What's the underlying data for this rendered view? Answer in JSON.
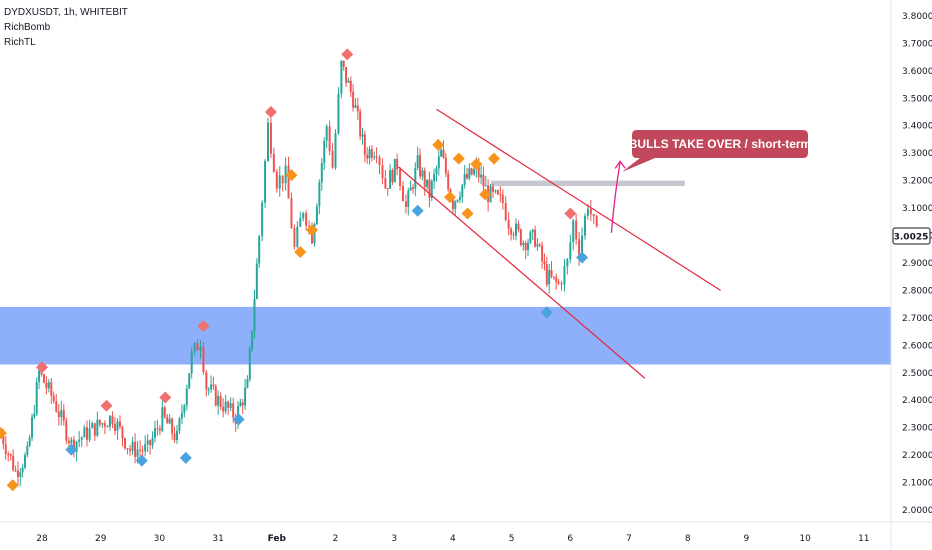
{
  "header": {
    "symbol_line": "DYDXUSDT, 1h, WHITEBIT",
    "indicator_1": "RichBomb",
    "indicator_2": "RichTL"
  },
  "annotation": {
    "text": "BULLS TAKE OVER / short-term"
  },
  "last_price_label": "3.0025",
  "colors": {
    "up": "#26a69a",
    "down": "#ef5350",
    "zone": "#6e98f8",
    "resistance": "#b2b5be",
    "channel": "#e5263d",
    "annotation_bg": "#c0485a",
    "arrow": "#e91e8c",
    "diamond_red": "#f07070",
    "diamond_orange": "#f7931a",
    "diamond_blue": "#4aa3df"
  },
  "chart_data": {
    "type": "candlestick",
    "title": "DYDXUSDT, 1h, WHITEBIT",
    "x_tick_labels": [
      "28",
      "29",
      "30",
      "31",
      "Feb",
      "2",
      "3",
      "4",
      "5",
      "6",
      "7",
      "8",
      "9",
      "10",
      "11"
    ],
    "y_tick_labels": [
      "2.0000",
      "2.1000",
      "2.2000",
      "2.3000",
      "2.4000",
      "2.5000",
      "2.6000",
      "2.7000",
      "2.8000",
      "2.9000",
      "3.0000",
      "3.1000",
      "3.2000",
      "3.3000",
      "3.4000",
      "3.5000",
      "3.6000",
      "3.7000",
      "3.8000"
    ],
    "ylim": [
      1.95,
      3.85
    ],
    "last_price": 3.0025,
    "price_path": [
      [
        27.3,
        2.28
      ],
      [
        27.55,
        2.14
      ],
      [
        27.75,
        2.2
      ],
      [
        27.95,
        2.5
      ],
      [
        28.2,
        2.4
      ],
      [
        28.5,
        2.24
      ],
      [
        28.9,
        2.3
      ],
      [
        29.2,
        2.34
      ],
      [
        29.5,
        2.22
      ],
      [
        29.8,
        2.22
      ],
      [
        30.05,
        2.34
      ],
      [
        30.3,
        2.26
      ],
      [
        30.55,
        2.56
      ],
      [
        30.7,
        2.62
      ],
      [
        30.8,
        2.45
      ],
      [
        31.0,
        2.4
      ],
      [
        31.3,
        2.34
      ],
      [
        31.5,
        2.45
      ],
      [
        31.7,
        3.0
      ],
      [
        31.85,
        3.4
      ],
      [
        32.0,
        3.2
      ],
      [
        32.15,
        3.22
      ],
      [
        32.3,
        2.95
      ],
      [
        32.45,
        3.1
      ],
      [
        32.6,
        3.0
      ],
      [
        32.85,
        3.4
      ],
      [
        32.95,
        3.25
      ],
      [
        33.1,
        3.62
      ],
      [
        33.3,
        3.5
      ],
      [
        33.5,
        3.3
      ],
      [
        33.7,
        3.32
      ],
      [
        33.85,
        3.18
      ],
      [
        34.05,
        3.26
      ],
      [
        34.2,
        3.1
      ],
      [
        34.4,
        3.26
      ],
      [
        34.6,
        3.15
      ],
      [
        34.8,
        3.3
      ],
      [
        35.0,
        3.12
      ],
      [
        35.2,
        3.2
      ],
      [
        35.4,
        3.24
      ],
      [
        35.6,
        3.15
      ],
      [
        35.85,
        3.12
      ],
      [
        35.95,
        3.05
      ],
      [
        36.2,
        2.98
      ],
      [
        36.4,
        2.99
      ],
      [
        36.6,
        2.85
      ],
      [
        36.8,
        2.82
      ],
      [
        36.95,
        2.9
      ],
      [
        37.05,
        3.05
      ],
      [
        37.15,
        2.95
      ],
      [
        37.3,
        3.12
      ],
      [
        37.45,
        3.0
      ]
    ],
    "support_zone": [
      2.53,
      2.74
    ],
    "resistance_zone": {
      "price_range": [
        3.18,
        3.2
      ],
      "x_range": [
        35.65,
        38.95
      ]
    },
    "channel_upper": [
      [
        34.72,
        3.46
      ],
      [
        39.56,
        2.8
      ]
    ],
    "channel_lower": [
      [
        34.07,
        3.25
      ],
      [
        38.27,
        2.48
      ]
    ],
    "markers": [
      {
        "x": 27.3,
        "y": 2.28,
        "kind": "orange"
      },
      {
        "x": 27.5,
        "y": 2.09,
        "kind": "orange"
      },
      {
        "x": 28.0,
        "y": 2.52,
        "kind": "red"
      },
      {
        "x": 28.5,
        "y": 2.22,
        "kind": "blue"
      },
      {
        "x": 29.1,
        "y": 2.38,
        "kind": "red"
      },
      {
        "x": 29.7,
        "y": 2.18,
        "kind": "blue"
      },
      {
        "x": 30.1,
        "y": 2.41,
        "kind": "red"
      },
      {
        "x": 30.45,
        "y": 2.19,
        "kind": "blue"
      },
      {
        "x": 30.75,
        "y": 2.67,
        "kind": "red"
      },
      {
        "x": 31.35,
        "y": 2.33,
        "kind": "blue"
      },
      {
        "x": 31.9,
        "y": 3.45,
        "kind": "red"
      },
      {
        "x": 32.25,
        "y": 3.22,
        "kind": "orange"
      },
      {
        "x": 32.4,
        "y": 2.94,
        "kind": "orange"
      },
      {
        "x": 32.6,
        "y": 3.02,
        "kind": "orange"
      },
      {
        "x": 33.2,
        "y": 3.66,
        "kind": "red"
      },
      {
        "x": 34.4,
        "y": 3.09,
        "kind": "blue"
      },
      {
        "x": 34.75,
        "y": 3.33,
        "kind": "orange"
      },
      {
        "x": 34.95,
        "y": 3.14,
        "kind": "orange"
      },
      {
        "x": 35.1,
        "y": 3.28,
        "kind": "orange"
      },
      {
        "x": 35.25,
        "y": 3.08,
        "kind": "orange"
      },
      {
        "x": 35.4,
        "y": 3.26,
        "kind": "orange"
      },
      {
        "x": 35.55,
        "y": 3.15,
        "kind": "orange"
      },
      {
        "x": 35.7,
        "y": 3.28,
        "kind": "orange"
      },
      {
        "x": 36.6,
        "y": 2.72,
        "kind": "blue"
      },
      {
        "x": 37.0,
        "y": 3.08,
        "kind": "red"
      },
      {
        "x": 37.2,
        "y": 2.92,
        "kind": "blue"
      }
    ]
  }
}
